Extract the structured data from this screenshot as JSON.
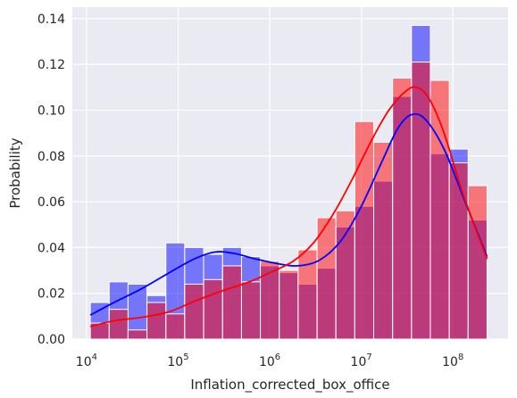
{
  "chart_data": {
    "type": "histogram",
    "title": "",
    "xlabel": "Inflation_corrected_box_office",
    "ylabel": "Probability",
    "xscale": "log",
    "xlim": [
      7000,
      400000000
    ],
    "ylim": [
      0,
      0.145
    ],
    "grid": true,
    "legend": "none",
    "x_tick_labels": [
      {
        "base": "10",
        "exp": "4",
        "value": 10000
      },
      {
        "base": "10",
        "exp": "5",
        "value": 100000
      },
      {
        "base": "10",
        "exp": "6",
        "value": 1000000
      },
      {
        "base": "10",
        "exp": "7",
        "value": 10000000
      },
      {
        "base": "10",
        "exp": "8",
        "value": 100000000
      }
    ],
    "y_ticks": [
      0.0,
      0.02,
      0.04,
      0.06,
      0.08,
      0.1,
      0.12,
      0.14
    ],
    "y_tick_labels": [
      "0.00",
      "0.02",
      "0.04",
      "0.06",
      "0.08",
      "0.10",
      "0.12",
      "0.14"
    ],
    "bin_edges": [
      11000,
      17700,
      28400,
      45700,
      73500,
      118000,
      190000,
      306000,
      492000,
      790000,
      1270000,
      2040000,
      3290000,
      5280000,
      8490000,
      13650000,
      21950000,
      35300000,
      56700000,
      91200000,
      146600000,
      235700000
    ],
    "series": [
      {
        "color": "#0000ff",
        "fill": "#7070f8",
        "values": [
          0.016,
          0.025,
          0.024,
          0.019,
          0.042,
          0.04,
          0.037,
          0.04,
          0.036,
          0.032,
          0.029,
          0.024,
          0.031,
          0.049,
          0.058,
          0.069,
          0.106,
          0.137,
          0.081,
          0.083,
          0.052
        ],
        "kde": [
          [
            11000,
            0.0105
          ],
          [
            20000,
            0.016
          ],
          [
            40000,
            0.022
          ],
          [
            80000,
            0.029
          ],
          [
            150000,
            0.035
          ],
          [
            250000,
            0.038
          ],
          [
            400000,
            0.0375
          ],
          [
            700000,
            0.035
          ],
          [
            1200000,
            0.033
          ],
          [
            2000000,
            0.032
          ],
          [
            3500000,
            0.0345
          ],
          [
            6000000,
            0.043
          ],
          [
            10000000,
            0.058
          ],
          [
            17000000,
            0.078
          ],
          [
            25000000,
            0.092
          ],
          [
            35000000,
            0.098
          ],
          [
            50000000,
            0.096
          ],
          [
            80000000,
            0.083
          ],
          [
            130000000,
            0.062
          ],
          [
            235700000,
            0.036
          ]
        ]
      },
      {
        "color": "#ff0000",
        "fill": "#f87272",
        "values": [
          0.007,
          0.013,
          0.004,
          0.016,
          0.011,
          0.024,
          0.026,
          0.032,
          0.025,
          0.034,
          0.03,
          0.039,
          0.053,
          0.056,
          0.095,
          0.086,
          0.114,
          0.121,
          0.113,
          0.077,
          0.067
        ],
        "kde": [
          [
            11000,
            0.0055
          ],
          [
            20000,
            0.008
          ],
          [
            40000,
            0.0095
          ],
          [
            80000,
            0.012
          ],
          [
            150000,
            0.0165
          ],
          [
            300000,
            0.021
          ],
          [
            600000,
            0.025
          ],
          [
            1000000,
            0.029
          ],
          [
            1800000,
            0.034
          ],
          [
            3000000,
            0.042
          ],
          [
            5000000,
            0.055
          ],
          [
            8000000,
            0.07
          ],
          [
            13000000,
            0.087
          ],
          [
            20000000,
            0.1
          ],
          [
            30000000,
            0.108
          ],
          [
            40000000,
            0.11
          ],
          [
            55000000,
            0.105
          ],
          [
            80000000,
            0.09
          ],
          [
            130000000,
            0.063
          ],
          [
            235700000,
            0.035
          ]
        ]
      }
    ]
  }
}
